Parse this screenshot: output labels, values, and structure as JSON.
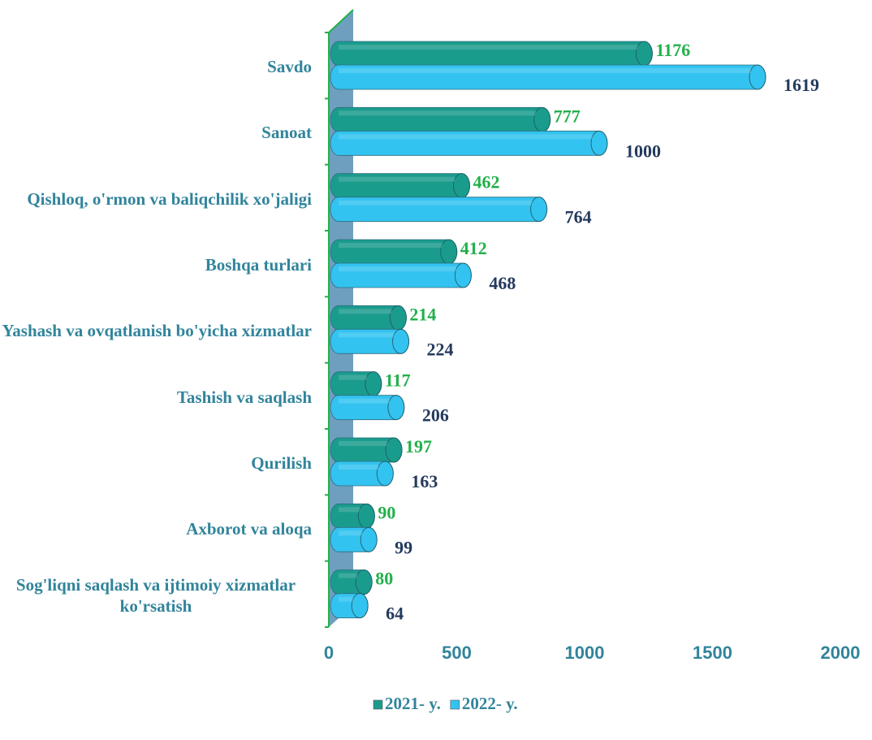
{
  "chart_data": {
    "type": "bar",
    "orientation": "horizontal",
    "categories": [
      "Savdo",
      "Sanoat",
      "Qishloq, o'rmon va baliqchilik xo'jaligi",
      "Boshqa turlari",
      "Yashash va ovqatlanish bo'yicha xizmatlar",
      "Tashish va saqlash",
      "Qurilish",
      "Axborot va aloqa",
      "Sog'liqni saqlash va ijtimoiy xizmatlar ko'rsatish"
    ],
    "series": [
      {
        "name": "2021- y.",
        "color": "#1a9c8c",
        "label_color": "#22b04b",
        "values": [
          1176,
          777,
          462,
          412,
          214,
          117,
          197,
          90,
          80
        ]
      },
      {
        "name": "2022- y.",
        "color": "#33c3f0",
        "label_color": "#243a5e",
        "values": [
          1619,
          1000,
          764,
          468,
          224,
          206,
          163,
          99,
          64
        ]
      }
    ],
    "xlim": [
      0,
      2000
    ],
    "xticks": [
      0,
      500,
      1000,
      1500,
      2000
    ],
    "legend": "bottom"
  }
}
